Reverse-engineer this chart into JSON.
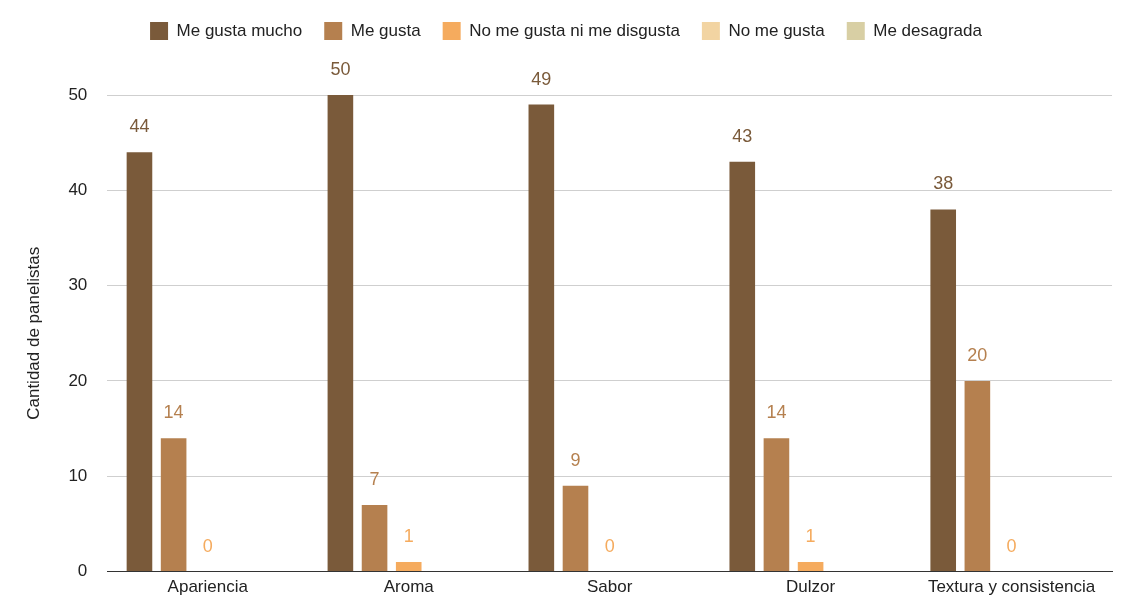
{
  "chart_data": {
    "type": "bar",
    "ylabel": "Cantidad de panelistas",
    "categories": [
      "Apariencia",
      "Aroma",
      "Sabor",
      "Dulzor",
      "Textura y consistencia"
    ],
    "series": [
      {
        "name": "Me gusta mucho",
        "color": "#7a5a3a",
        "values": [
          44,
          50,
          49,
          43,
          38
        ],
        "value_labels": [
          "44",
          "50",
          "49",
          "43",
          "38"
        ]
      },
      {
        "name": "Me gusta",
        "color": "#b5804f",
        "values": [
          14,
          7,
          9,
          14,
          20
        ],
        "value_labels": [
          "14",
          "7",
          "9",
          "14",
          "20"
        ]
      },
      {
        "name": "No me gusta ni me disgusta",
        "color": "#f5ab5e",
        "values": [
          0,
          1,
          0,
          1,
          0
        ],
        "value_labels": [
          "0",
          "1",
          "0",
          "1",
          "0"
        ]
      },
      {
        "name": "No me gusta",
        "color": "#f2d4a2",
        "values": [
          0,
          0,
          0,
          0,
          0
        ]
      },
      {
        "name": "Me desagrada",
        "color": "#d8cfa4",
        "values": [
          0,
          0,
          0,
          0,
          0
        ]
      }
    ],
    "ylim": [
      0,
      50
    ],
    "yticks": [
      0,
      10,
      20,
      30,
      40,
      50
    ],
    "grid": "y",
    "legend": "top"
  }
}
